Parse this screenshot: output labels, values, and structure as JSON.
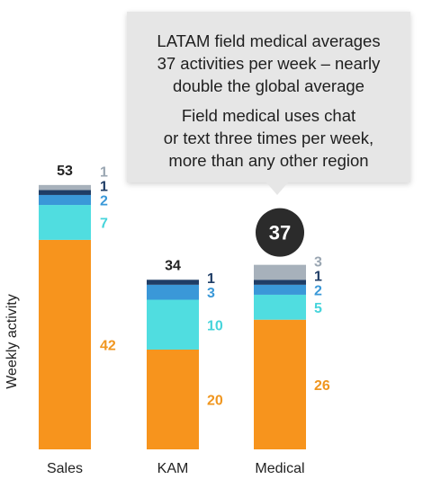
{
  "callout": {
    "lines_1": [
      "LATAM field medical averages",
      "37 activities per week – nearly",
      "double the global average"
    ],
    "lines_2": [
      "Field medical uses chat",
      "or text three times per week,",
      "more than any other region"
    ]
  },
  "colors": {
    "segments": [
      "#f7941d",
      "#50dde0",
      "#3a98d8",
      "#1f3d66",
      "#a7b1bb"
    ],
    "labels": [
      "#f0961f",
      "#46d4db",
      "#3a98d8",
      "#1f3d66",
      "#9aa6b2"
    ],
    "total": "#222222",
    "highlight_circle": "#2b2b2b",
    "axis": "#222222"
  },
  "chart_data": {
    "type": "bar",
    "stacked": true,
    "ylabel": "Weekly activity",
    "categories": [
      "Sales",
      "KAM",
      "Medical"
    ],
    "series": [
      {
        "values": [
          42,
          20,
          26
        ]
      },
      {
        "values": [
          7,
          10,
          5
        ]
      },
      {
        "values": [
          2,
          3,
          2
        ]
      },
      {
        "values": [
          1,
          1,
          1
        ]
      },
      {
        "values": [
          1,
          0,
          3
        ]
      }
    ],
    "totals": [
      53,
      34,
      37
    ],
    "highlight": {
      "category": "Medical",
      "value": 37
    },
    "ylim": [
      0,
      53
    ]
  }
}
